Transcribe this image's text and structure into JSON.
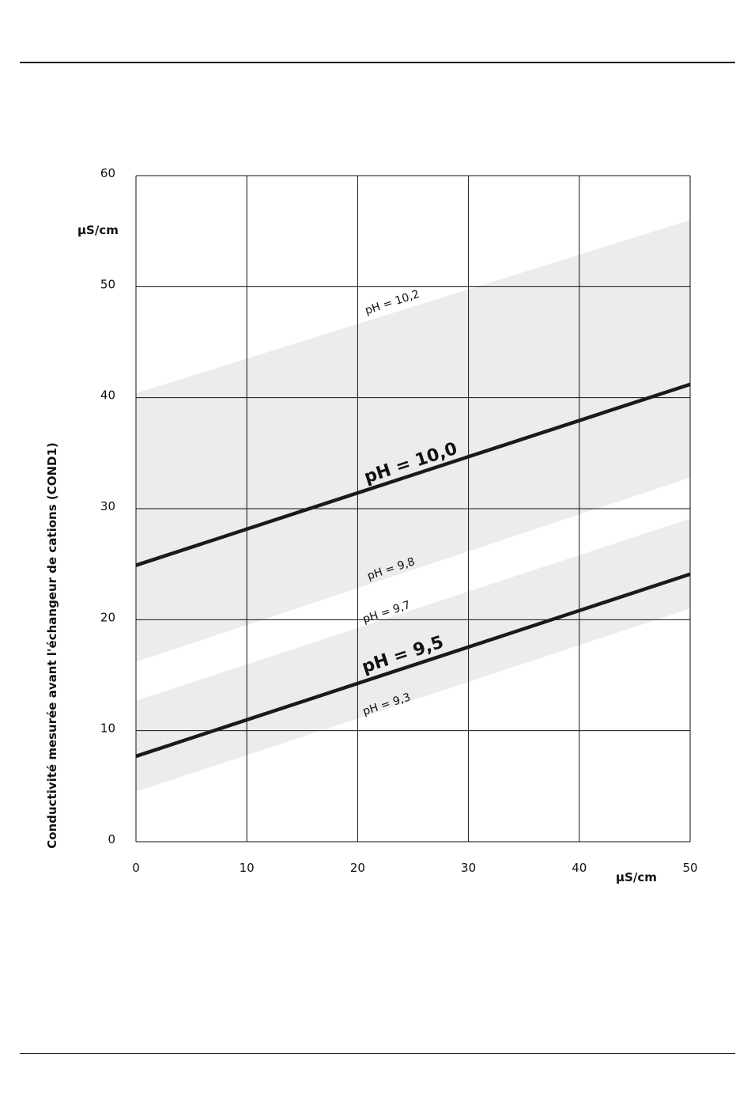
{
  "chart_data": {
    "type": "line",
    "xlabel": "µS/cm",
    "ylabel": "Conductivité mesurée avant l'échangeur de cations (COND1)",
    "y_unit": "µS/cm",
    "xlim": [
      0,
      50
    ],
    "ylim": [
      0,
      60
    ],
    "x_ticks": [
      "0",
      "10",
      "20",
      "30",
      "40",
      "50"
    ],
    "y_ticks": [
      "0",
      "10",
      "20",
      "30",
      "40",
      "50",
      "60"
    ],
    "grid": true,
    "colors": {
      "line": "#1a1a1a",
      "band": "#ececec",
      "grid": "#111111"
    },
    "bands": [
      {
        "upper_label": "pH = 10,2",
        "lower_label": "pH = 9,8",
        "upper": [
          [
            0,
            40.4
          ],
          [
            50,
            56.0
          ]
        ],
        "lower": [
          [
            0,
            16.2
          ],
          [
            50,
            32.8
          ]
        ]
      },
      {
        "upper_label": "pH = 9,7",
        "lower_label": "pH = 9,3",
        "upper": [
          [
            0,
            12.7
          ],
          [
            50,
            29.1
          ]
        ],
        "lower": [
          [
            0,
            4.5
          ],
          [
            50,
            21.0
          ]
        ]
      }
    ],
    "series": [
      {
        "name": "pH = 10,0",
        "points": [
          [
            0,
            24.9
          ],
          [
            50,
            41.2
          ]
        ]
      },
      {
        "name": "pH = 9,5",
        "points": [
          [
            0,
            7.7
          ],
          [
            50,
            24.1
          ]
        ]
      }
    ],
    "annotations": [
      {
        "text": "pH = 10,2",
        "x": 20.8,
        "y": 47.5,
        "style": "band"
      },
      {
        "text": "pH = 10,0",
        "x": 20.8,
        "y": 32.3,
        "style": "line"
      },
      {
        "text": "pH = 9,8",
        "x": 21.0,
        "y": 23.6,
        "style": "band"
      },
      {
        "text": "pH = 9,7",
        "x": 20.6,
        "y": 19.7,
        "style": "band"
      },
      {
        "text": "pH = 9,5",
        "x": 20.6,
        "y": 15.2,
        "style": "line"
      },
      {
        "text": "pH = 9,3",
        "x": 20.6,
        "y": 11.4,
        "style": "band"
      }
    ]
  }
}
